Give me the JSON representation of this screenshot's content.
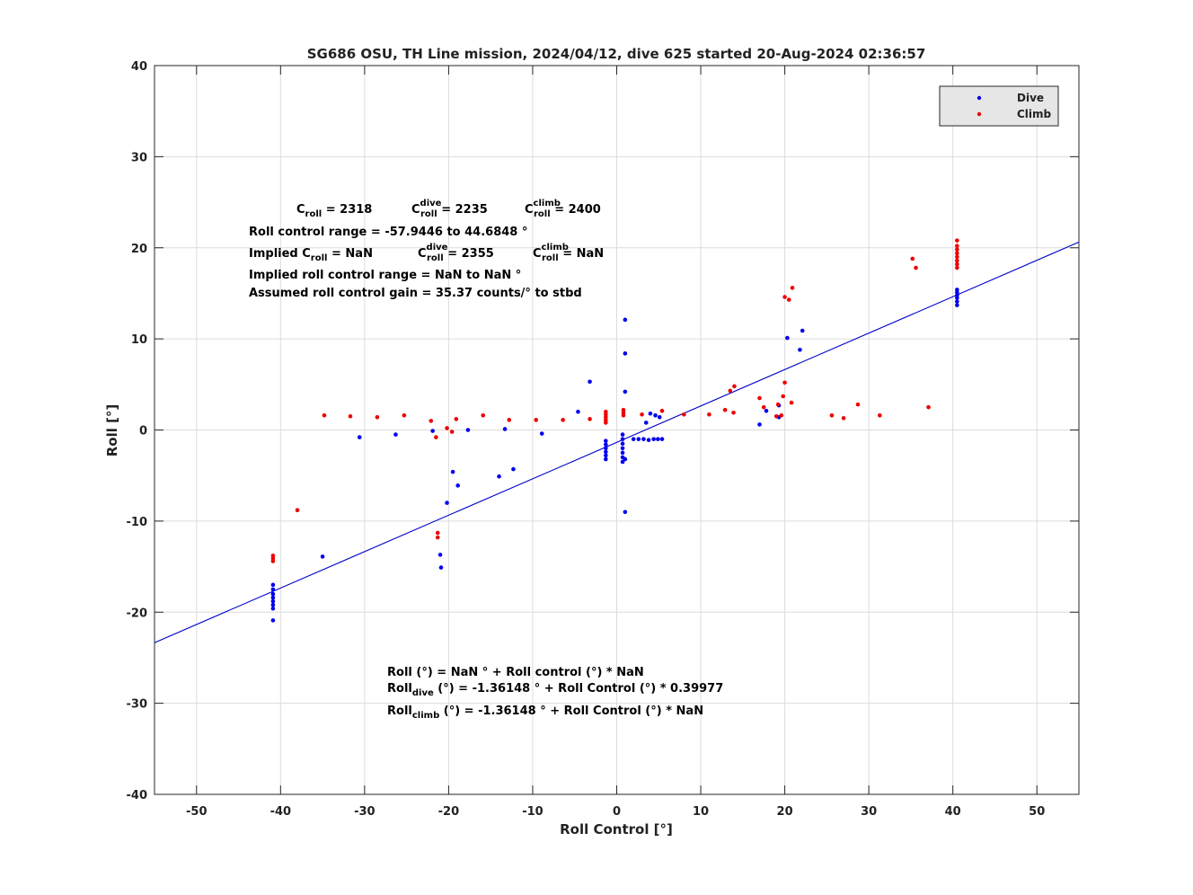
{
  "chart_data": {
    "type": "scatter",
    "title": "SG686 OSU, TH Line mission, 2024/04/12, dive 625 started 20-Aug-2024 02:36:57",
    "xlabel": "Roll Control [°]",
    "ylabel": "Roll [°]",
    "xlim": [
      -55,
      55
    ],
    "ylim": [
      -40,
      40
    ],
    "x_ticks": [
      -50,
      -40,
      -30,
      -20,
      -10,
      0,
      10,
      20,
      30,
      40,
      50
    ],
    "y_ticks": [
      -40,
      -30,
      -20,
      -10,
      0,
      10,
      20,
      30,
      40
    ],
    "grid": true,
    "legend_position": "top-right",
    "colors": {
      "dive": "#0000ee",
      "climb": "#ee0000",
      "fit": "#0000cc"
    },
    "series": [
      {
        "name": "Dive",
        "color": "#0000ee",
        "points": [
          [
            -40.9,
            -17.0
          ],
          [
            -40.9,
            -17.5
          ],
          [
            -40.9,
            -18.0
          ],
          [
            -40.9,
            -18.4
          ],
          [
            -40.9,
            -18.8
          ],
          [
            -40.9,
            -19.2
          ],
          [
            -40.9,
            -19.6
          ],
          [
            -40.9,
            -20.9
          ],
          [
            -35.0,
            -13.9
          ],
          [
            -30.6,
            -0.8
          ],
          [
            -26.3,
            -0.5
          ],
          [
            -21.9,
            -0.1
          ],
          [
            -21.0,
            -13.7
          ],
          [
            -20.9,
            -15.1
          ],
          [
            -20.2,
            -8.0
          ],
          [
            -19.5,
            -4.6
          ],
          [
            -18.9,
            -6.1
          ],
          [
            -17.7,
            0.0
          ],
          [
            -14.0,
            -5.1
          ],
          [
            -13.3,
            0.1
          ],
          [
            -12.3,
            -4.3
          ],
          [
            -8.9,
            -0.4
          ],
          [
            -4.6,
            2.0
          ],
          [
            -3.2,
            5.3
          ],
          [
            -1.3,
            -1.2
          ],
          [
            -1.3,
            -1.6
          ],
          [
            -1.3,
            -2.0
          ],
          [
            -1.3,
            -2.4
          ],
          [
            -1.3,
            -2.8
          ],
          [
            -1.3,
            -3.2
          ],
          [
            0.7,
            -0.5
          ],
          [
            0.7,
            -1.0
          ],
          [
            0.7,
            -1.5
          ],
          [
            0.7,
            -2.0
          ],
          [
            0.7,
            -2.5
          ],
          [
            0.7,
            -3.0
          ],
          [
            0.7,
            -3.5
          ],
          [
            1.0,
            12.1
          ],
          [
            1.0,
            8.4
          ],
          [
            1.0,
            4.2
          ],
          [
            1.0,
            -9.0
          ],
          [
            1.0,
            -3.2
          ],
          [
            2.0,
            -1.0
          ],
          [
            2.6,
            -1.0
          ],
          [
            3.2,
            -1.0
          ],
          [
            3.8,
            -1.1
          ],
          [
            4.4,
            -1.0
          ],
          [
            4.9,
            -1.0
          ],
          [
            5.4,
            -1.0
          ],
          [
            3.5,
            0.8
          ],
          [
            4.0,
            1.8
          ],
          [
            4.6,
            1.6
          ],
          [
            5.1,
            1.4
          ],
          [
            17.0,
            0.6
          ],
          [
            17.8,
            2.1
          ],
          [
            19.3,
            1.4
          ],
          [
            19.3,
            2.7
          ],
          [
            20.3,
            10.1
          ],
          [
            21.8,
            8.8
          ],
          [
            22.1,
            10.9
          ],
          [
            40.5,
            13.7
          ],
          [
            40.5,
            14.1
          ],
          [
            40.5,
            14.5
          ],
          [
            40.5,
            14.8
          ],
          [
            40.5,
            15.1
          ],
          [
            40.5,
            15.4
          ]
        ]
      },
      {
        "name": "Climb",
        "color": "#ee0000",
        "points": [
          [
            -40.9,
            -13.8
          ],
          [
            -40.9,
            -14.1
          ],
          [
            -40.9,
            -14.4
          ],
          [
            -38.0,
            -8.8
          ],
          [
            -34.8,
            1.6
          ],
          [
            -31.7,
            1.5
          ],
          [
            -28.5,
            1.4
          ],
          [
            -25.3,
            1.6
          ],
          [
            -22.1,
            1.0
          ],
          [
            -21.5,
            -0.8
          ],
          [
            -21.3,
            -11.3
          ],
          [
            -21.3,
            -11.8
          ],
          [
            -20.2,
            0.2
          ],
          [
            -19.6,
            -0.2
          ],
          [
            -19.1,
            1.2
          ],
          [
            -15.9,
            1.6
          ],
          [
            -12.8,
            1.1
          ],
          [
            -9.6,
            1.1
          ],
          [
            -6.4,
            1.1
          ],
          [
            -3.2,
            1.2
          ],
          [
            -1.3,
            0.8
          ],
          [
            -1.3,
            1.1
          ],
          [
            -1.3,
            1.4
          ],
          [
            -1.3,
            1.7
          ],
          [
            -1.3,
            2.0
          ],
          [
            0.8,
            1.6
          ],
          [
            0.8,
            1.9
          ],
          [
            0.8,
            2.2
          ],
          [
            3.0,
            1.7
          ],
          [
            5.4,
            2.1
          ],
          [
            8.0,
            1.7
          ],
          [
            11.0,
            1.7
          ],
          [
            12.9,
            2.2
          ],
          [
            13.5,
            4.3
          ],
          [
            13.9,
            1.9
          ],
          [
            14.0,
            4.8
          ],
          [
            17.0,
            3.5
          ],
          [
            17.5,
            2.5
          ],
          [
            19.0,
            1.5
          ],
          [
            19.2,
            2.8
          ],
          [
            19.6,
            1.6
          ],
          [
            19.8,
            3.7
          ],
          [
            20.0,
            5.2
          ],
          [
            20.0,
            14.6
          ],
          [
            20.5,
            14.3
          ],
          [
            20.9,
            15.6
          ],
          [
            20.8,
            3.0
          ],
          [
            25.6,
            1.6
          ],
          [
            27.0,
            1.3
          ],
          [
            28.7,
            2.8
          ],
          [
            31.3,
            1.6
          ],
          [
            35.2,
            18.8
          ],
          [
            35.6,
            17.8
          ],
          [
            37.1,
            2.5
          ],
          [
            40.5,
            17.8
          ],
          [
            40.5,
            18.2
          ],
          [
            40.5,
            18.6
          ],
          [
            40.5,
            19.0
          ],
          [
            40.5,
            19.4
          ],
          [
            40.5,
            19.8
          ],
          [
            40.5,
            20.2
          ],
          [
            40.5,
            20.8
          ]
        ]
      }
    ],
    "fit_line": {
      "name": "Roll_dive fit",
      "intercept": -1.36148,
      "slope": 0.39977,
      "color": "#0000cc"
    },
    "annotations": {
      "c_roll": {
        "c": "C",
        "roll": "roll",
        "val": " = 2318"
      },
      "c_dive": {
        "c": "C",
        "sup": "dive",
        "roll": "roll",
        "val": " = 2235"
      },
      "c_climb": {
        "c": "C",
        "sup": "climb",
        "roll": "roll",
        "val": " = 2400"
      },
      "range": "Roll control range = -57.9446 to 44.6848  °",
      "implied_prefix": "Implied C",
      "implied_roll_sub": "roll",
      "implied_val": " =  NaN",
      "implied_dive": {
        "c": "C",
        "sup": "dive",
        "roll": "roll",
        "val": " = 2355"
      },
      "implied_climb": {
        "c": "C",
        "sup": "climb",
        "roll": "roll",
        "val": " =  NaN"
      },
      "implied_range": "Implied roll control range = NaN to NaN °",
      "gain": "Assumed roll control gain = 35.37 counts/° to stbd",
      "eq1": "Roll (°) = NaN ° + Roll control (°) * NaN",
      "eq2_prefix": "Roll",
      "eq2_sub": "dive",
      "eq2_rest": " (°) = -1.36148 ° + Roll Control (°) * 0.39977",
      "eq3_prefix": "Roll",
      "eq3_sub": "climb",
      "eq3_rest": " (°) = -1.36148 ° + Roll Control (°) * NaN"
    }
  }
}
